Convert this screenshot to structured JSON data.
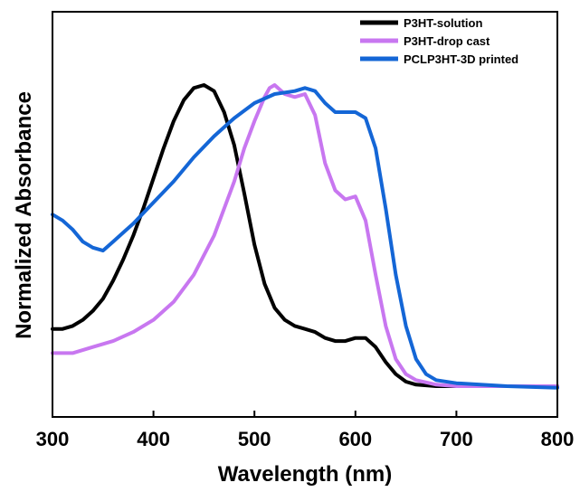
{
  "chart_data": {
    "type": "line",
    "title": "",
    "xlabel": "Wavelength (nm)",
    "ylabel": "Normalized Absorbance",
    "xlim": [
      300,
      800
    ],
    "ylim": [
      0,
      1.09
    ],
    "x_ticks": [
      "300",
      "400",
      "500",
      "600",
      "700",
      "800"
    ],
    "y_ticks_shown": false,
    "grid": false,
    "legend_position": "top-right",
    "series": [
      {
        "name": "P3HT-solution",
        "color": "#000000",
        "points": [
          [
            300,
            0.19
          ],
          [
            310,
            0.19
          ],
          [
            320,
            0.2
          ],
          [
            330,
            0.22
          ],
          [
            340,
            0.25
          ],
          [
            350,
            0.29
          ],
          [
            360,
            0.35
          ],
          [
            370,
            0.42
          ],
          [
            380,
            0.5
          ],
          [
            390,
            0.59
          ],
          [
            400,
            0.69
          ],
          [
            410,
            0.79
          ],
          [
            420,
            0.88
          ],
          [
            430,
            0.95
          ],
          [
            440,
            0.99
          ],
          [
            450,
            1.0
          ],
          [
            460,
            0.98
          ],
          [
            470,
            0.91
          ],
          [
            480,
            0.8
          ],
          [
            490,
            0.64
          ],
          [
            500,
            0.47
          ],
          [
            510,
            0.34
          ],
          [
            520,
            0.26
          ],
          [
            530,
            0.22
          ],
          [
            540,
            0.2
          ],
          [
            550,
            0.19
          ],
          [
            560,
            0.18
          ],
          [
            570,
            0.16
          ],
          [
            580,
            0.15
          ],
          [
            590,
            0.15
          ],
          [
            600,
            0.16
          ],
          [
            610,
            0.16
          ],
          [
            620,
            0.13
          ],
          [
            630,
            0.08
          ],
          [
            640,
            0.04
          ],
          [
            650,
            0.015
          ],
          [
            660,
            0.005
          ],
          [
            680,
            0.0
          ],
          [
            700,
            0.0
          ],
          [
            750,
            0.0
          ],
          [
            800,
            0.0
          ]
        ]
      },
      {
        "name": "P3HT-drop cast",
        "color": "#c877f0",
        "points": [
          [
            300,
            0.11
          ],
          [
            320,
            0.11
          ],
          [
            340,
            0.13
          ],
          [
            360,
            0.15
          ],
          [
            380,
            0.18
          ],
          [
            400,
            0.22
          ],
          [
            420,
            0.28
          ],
          [
            440,
            0.37
          ],
          [
            460,
            0.5
          ],
          [
            480,
            0.68
          ],
          [
            490,
            0.79
          ],
          [
            500,
            0.88
          ],
          [
            510,
            0.96
          ],
          [
            515,
            0.99
          ],
          [
            520,
            1.0
          ],
          [
            530,
            0.97
          ],
          [
            540,
            0.96
          ],
          [
            550,
            0.97
          ],
          [
            560,
            0.9
          ],
          [
            570,
            0.74
          ],
          [
            580,
            0.65
          ],
          [
            590,
            0.62
          ],
          [
            600,
            0.63
          ],
          [
            610,
            0.55
          ],
          [
            620,
            0.37
          ],
          [
            630,
            0.2
          ],
          [
            640,
            0.09
          ],
          [
            650,
            0.04
          ],
          [
            660,
            0.02
          ],
          [
            680,
            0.005
          ],
          [
            700,
            0.0
          ],
          [
            750,
            0.0
          ],
          [
            800,
            0.0
          ]
        ]
      },
      {
        "name": "PCLP3HT-3D printed",
        "color": "#1466d6",
        "points": [
          [
            300,
            0.57
          ],
          [
            310,
            0.55
          ],
          [
            320,
            0.52
          ],
          [
            330,
            0.48
          ],
          [
            340,
            0.46
          ],
          [
            350,
            0.45
          ],
          [
            360,
            0.48
          ],
          [
            380,
            0.54
          ],
          [
            400,
            0.61
          ],
          [
            420,
            0.68
          ],
          [
            440,
            0.76
          ],
          [
            460,
            0.83
          ],
          [
            480,
            0.89
          ],
          [
            500,
            0.94
          ],
          [
            520,
            0.97
          ],
          [
            540,
            0.98
          ],
          [
            550,
            0.99
          ],
          [
            560,
            0.98
          ],
          [
            570,
            0.94
          ],
          [
            580,
            0.91
          ],
          [
            590,
            0.91
          ],
          [
            600,
            0.91
          ],
          [
            610,
            0.89
          ],
          [
            620,
            0.79
          ],
          [
            630,
            0.59
          ],
          [
            640,
            0.37
          ],
          [
            650,
            0.2
          ],
          [
            660,
            0.09
          ],
          [
            670,
            0.04
          ],
          [
            680,
            0.02
          ],
          [
            700,
            0.01
          ],
          [
            750,
            0.0
          ],
          [
            800,
            -0.005
          ]
        ]
      }
    ]
  }
}
